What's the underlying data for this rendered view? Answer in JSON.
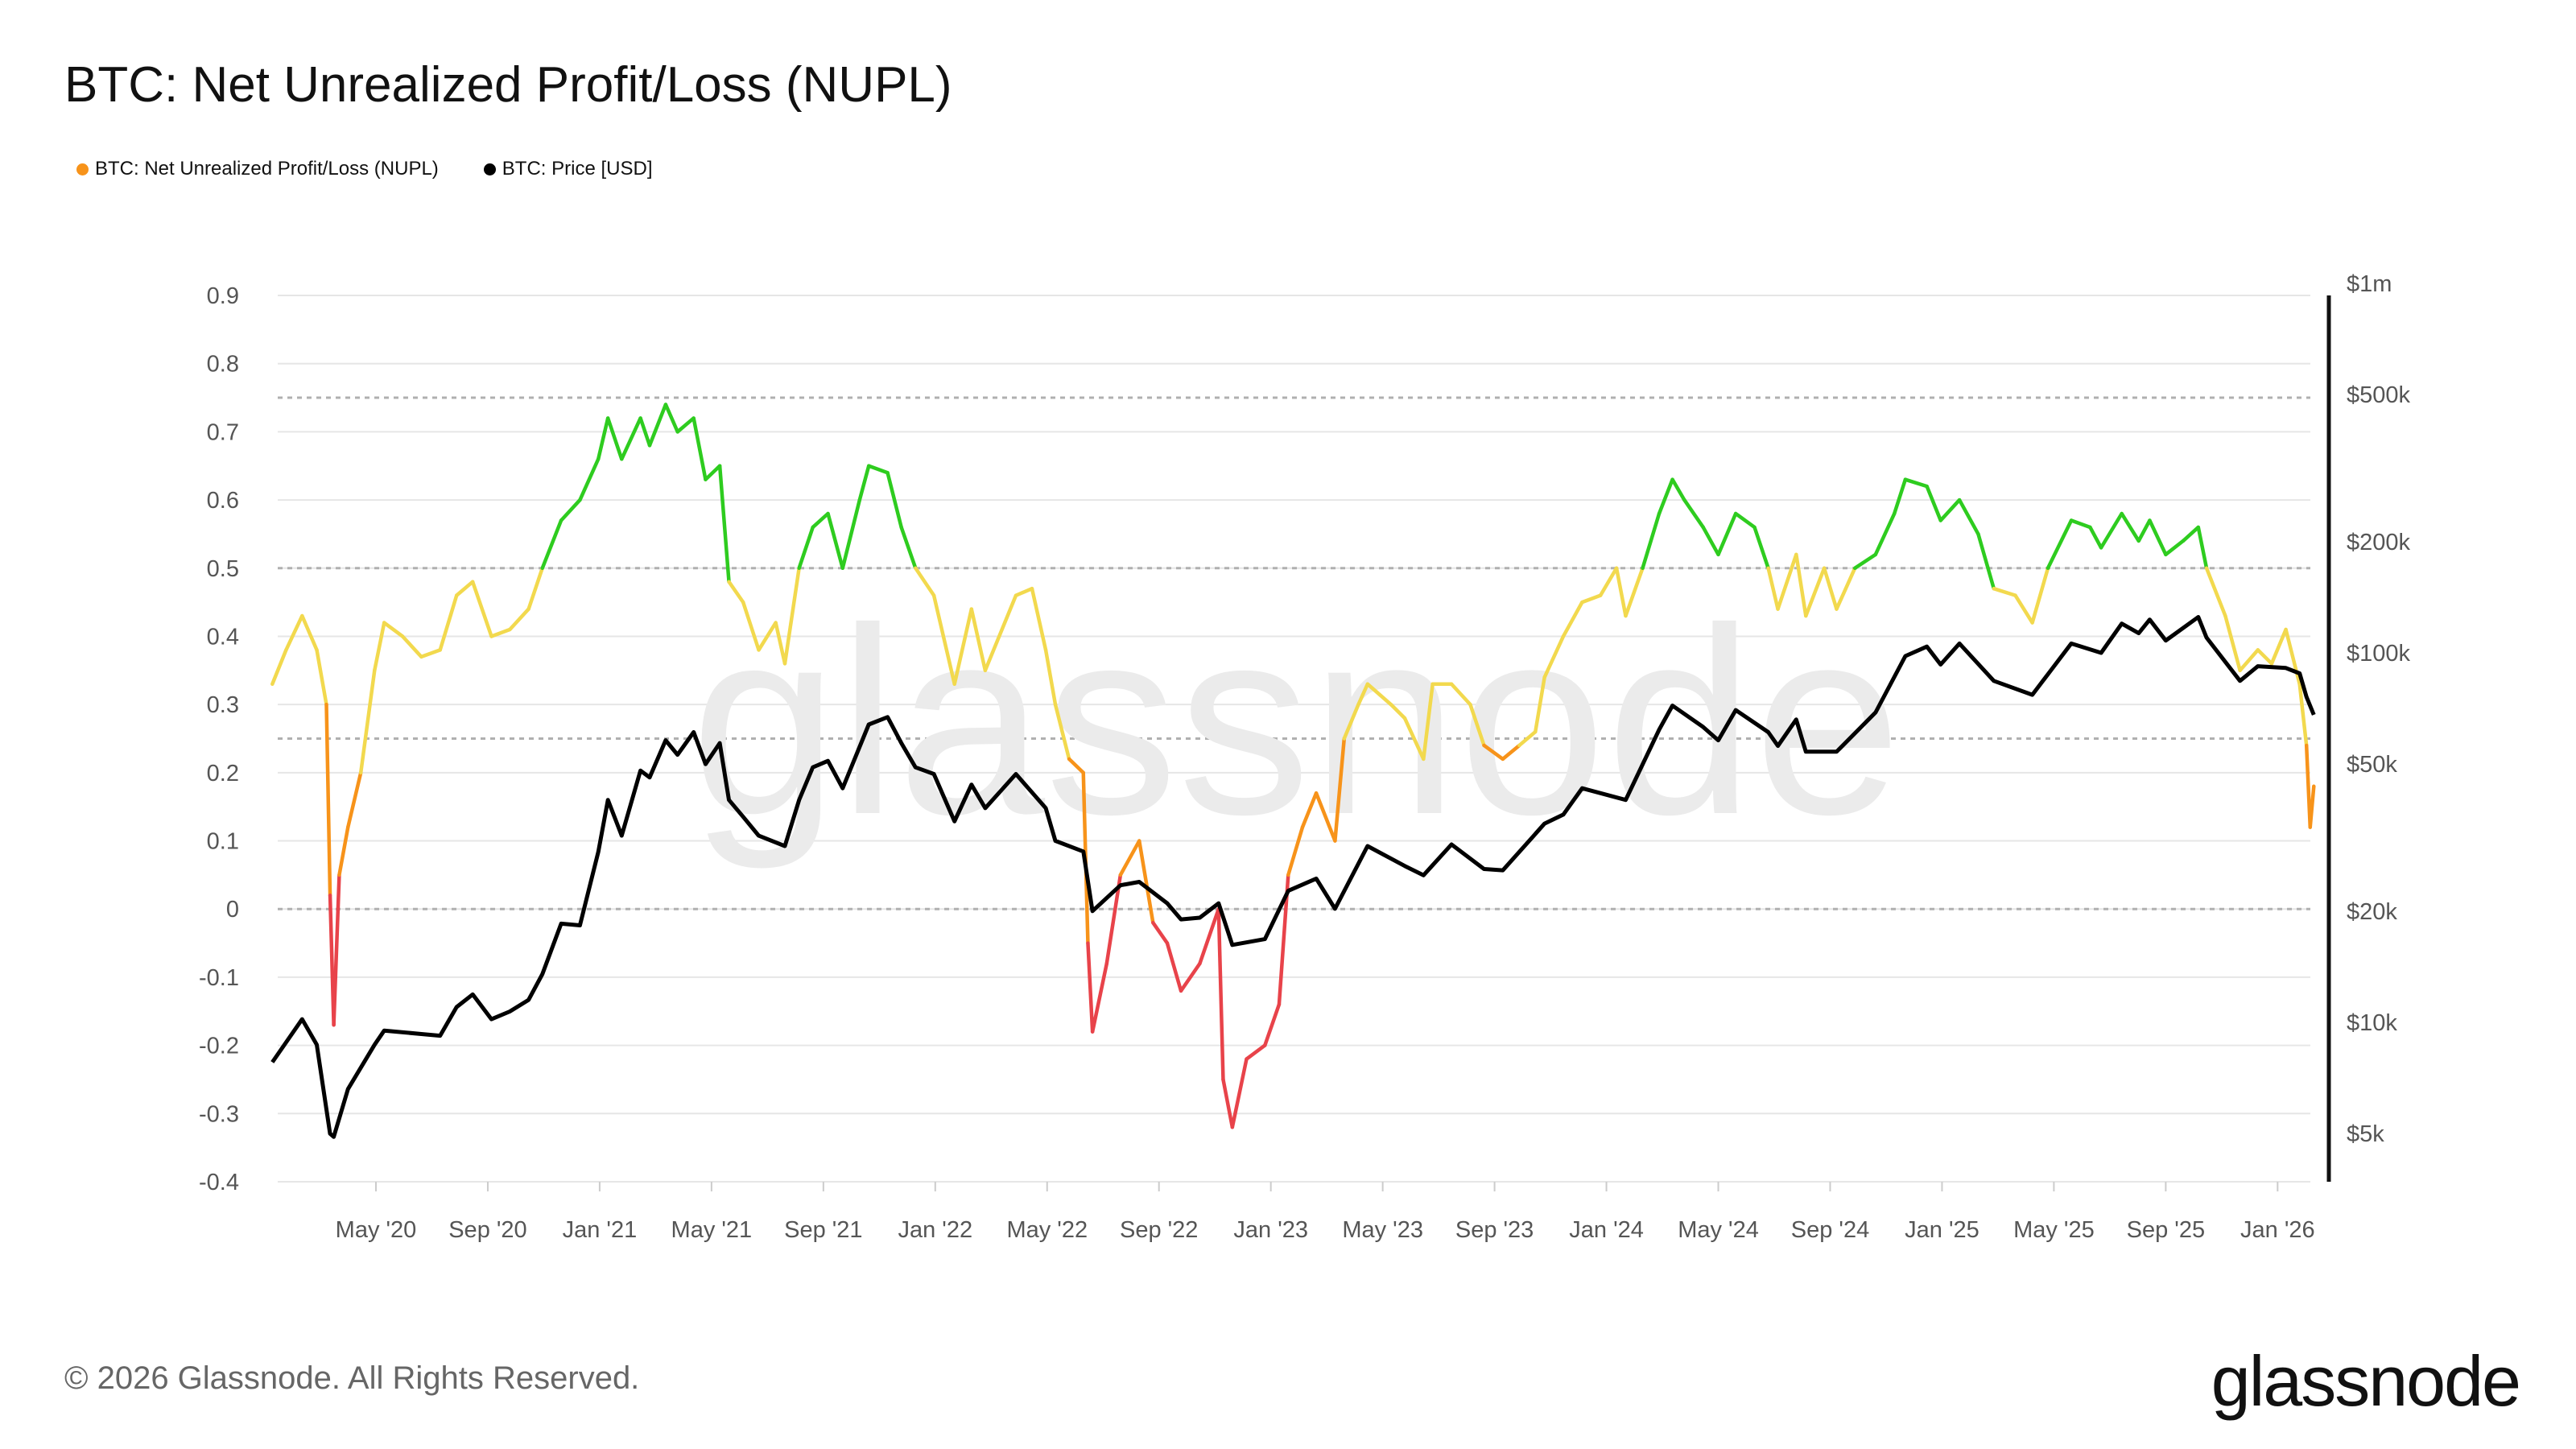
{
  "title": "BTC: Net Unrealized Profit/Loss (NUPL)",
  "footer": "© 2026 Glassnode. All Rights Reserved.",
  "logo": "glassnode",
  "watermark": "glassnode",
  "colors": {
    "red": "#e8434a",
    "orange": "#f7931a",
    "yellow": "#f2d94e",
    "green": "#2ecc1f",
    "price": "#000000",
    "grid": "#e6e6e6",
    "dashed": "#b0b0b0"
  },
  "chart_data": {
    "type": "line",
    "title": "BTC: Net Unrealized Profit/Loss (NUPL)",
    "legend": {
      "placement": "top-left",
      "items": [
        {
          "name": "BTC: Net Unrealized Profit/Loss (NUPL)",
          "color": "#f7931a"
        },
        {
          "name": "BTC: Price [USD]",
          "color": "#000000"
        }
      ]
    },
    "x_ticks": [
      "May '20",
      "Sep '20",
      "Jan '21",
      "May '21",
      "Sep '21",
      "Jan '22",
      "May '22",
      "Sep '22",
      "Jan '23",
      "May '23",
      "Sep '23",
      "Jan '24",
      "May '24",
      "Sep '24",
      "Jan '25",
      "May '25",
      "Sep '25",
      "Jan '26"
    ],
    "y_left": {
      "range": [
        -0.4,
        0.9
      ],
      "ticks": [
        "0.9",
        "0.8",
        "0.7",
        "0.6",
        "0.5",
        "0.4",
        "0.3",
        "0.2",
        "0.1",
        "0",
        "-0.1",
        "-0.2",
        "-0.3",
        "-0.4"
      ],
      "dashed_levels": [
        0.75,
        0.5,
        0.25,
        0
      ]
    },
    "y_right": {
      "scale": "log",
      "range": [
        4500,
        1000000
      ],
      "ticks": [
        {
          "label": "$1m",
          "value": 1000000
        },
        {
          "label": "$500k",
          "value": 500000
        },
        {
          "label": "$200k",
          "value": 200000
        },
        {
          "label": "$100k",
          "value": 100000
        },
        {
          "label": "$50k",
          "value": 50000
        },
        {
          "label": "$20k",
          "value": 20000
        },
        {
          "label": "$10k",
          "value": 10000
        },
        {
          "label": "$5k",
          "value": 5000
        }
      ]
    },
    "grid": true,
    "nupl_color_bands": [
      {
        "below": 0,
        "color": "red"
      },
      {
        "below": 0.25,
        "color": "orange"
      },
      {
        "below": 0.5,
        "color": "yellow"
      },
      {
        "below": 1,
        "color": "green"
      }
    ],
    "series": [
      {
        "name": "BTC: Net Unrealized Profit/Loss (NUPL)",
        "axis": "left",
        "points": [
          [
            "2020-01-10",
            0.33
          ],
          [
            "2020-01-25",
            0.38
          ],
          [
            "2020-02-12",
            0.43
          ],
          [
            "2020-02-28",
            0.38
          ],
          [
            "2020-03-08",
            0.3
          ],
          [
            "2020-03-12",
            0.02
          ],
          [
            "2020-03-16",
            -0.17
          ],
          [
            "2020-03-22",
            0.05
          ],
          [
            "2020-04-01",
            0.12
          ],
          [
            "2020-04-15",
            0.2
          ],
          [
            "2020-04-30",
            0.35
          ],
          [
            "2020-05-10",
            0.42
          ],
          [
            "2020-05-30",
            0.4
          ],
          [
            "2020-06-20",
            0.37
          ],
          [
            "2020-07-10",
            0.38
          ],
          [
            "2020-07-28",
            0.46
          ],
          [
            "2020-08-15",
            0.48
          ],
          [
            "2020-09-05",
            0.4
          ],
          [
            "2020-09-25",
            0.41
          ],
          [
            "2020-10-15",
            0.44
          ],
          [
            "2020-10-30",
            0.5
          ],
          [
            "2020-11-20",
            0.57
          ],
          [
            "2020-12-10",
            0.6
          ],
          [
            "2020-12-30",
            0.66
          ],
          [
            "2021-01-10",
            0.72
          ],
          [
            "2021-01-25",
            0.66
          ],
          [
            "2021-02-15",
            0.72
          ],
          [
            "2021-02-25",
            0.68
          ],
          [
            "2021-03-12",
            0.74
          ],
          [
            "2021-03-25",
            0.7
          ],
          [
            "2021-04-12",
            0.72
          ],
          [
            "2021-04-25",
            0.63
          ],
          [
            "2021-05-10",
            0.65
          ],
          [
            "2021-05-20",
            0.48
          ],
          [
            "2021-06-05",
            0.45
          ],
          [
            "2021-06-22",
            0.38
          ],
          [
            "2021-07-10",
            0.42
          ],
          [
            "2021-07-20",
            0.36
          ],
          [
            "2021-08-05",
            0.5
          ],
          [
            "2021-08-20",
            0.56
          ],
          [
            "2021-09-06",
            0.58
          ],
          [
            "2021-09-22",
            0.5
          ],
          [
            "2021-10-10",
            0.6
          ],
          [
            "2021-10-20",
            0.65
          ],
          [
            "2021-11-10",
            0.64
          ],
          [
            "2021-11-25",
            0.56
          ],
          [
            "2021-12-10",
            0.5
          ],
          [
            "2021-12-30",
            0.46
          ],
          [
            "2022-01-22",
            0.33
          ],
          [
            "2022-02-10",
            0.44
          ],
          [
            "2022-02-25",
            0.35
          ],
          [
            "2022-03-28",
            0.46
          ],
          [
            "2022-04-15",
            0.47
          ],
          [
            "2022-04-30",
            0.38
          ],
          [
            "2022-05-10",
            0.3
          ],
          [
            "2022-05-25",
            0.22
          ],
          [
            "2022-06-10",
            0.2
          ],
          [
            "2022-06-15",
            -0.05
          ],
          [
            "2022-06-20",
            -0.18
          ],
          [
            "2022-07-05",
            -0.08
          ],
          [
            "2022-07-20",
            0.05
          ],
          [
            "2022-08-10",
            0.1
          ],
          [
            "2022-08-25",
            -0.02
          ],
          [
            "2022-09-10",
            -0.05
          ],
          [
            "2022-09-25",
            -0.12
          ],
          [
            "2022-10-15",
            -0.08
          ],
          [
            "2022-11-05",
            0.0
          ],
          [
            "2022-11-10",
            -0.25
          ],
          [
            "2022-11-20",
            -0.32
          ],
          [
            "2022-12-05",
            -0.22
          ],
          [
            "2022-12-25",
            -0.2
          ],
          [
            "2023-01-10",
            -0.14
          ],
          [
            "2023-01-20",
            0.05
          ],
          [
            "2023-02-05",
            0.12
          ],
          [
            "2023-02-20",
            0.17
          ],
          [
            "2023-03-10",
            0.1
          ],
          [
            "2023-03-20",
            0.25
          ],
          [
            "2023-04-05",
            0.3
          ],
          [
            "2023-04-15",
            0.33
          ],
          [
            "2023-05-10",
            0.3
          ],
          [
            "2023-05-25",
            0.28
          ],
          [
            "2023-06-15",
            0.22
          ],
          [
            "2023-06-25",
            0.33
          ],
          [
            "2023-07-15",
            0.33
          ],
          [
            "2023-08-05",
            0.3
          ],
          [
            "2023-08-20",
            0.24
          ],
          [
            "2023-09-10",
            0.22
          ],
          [
            "2023-09-28",
            0.24
          ],
          [
            "2023-10-15",
            0.26
          ],
          [
            "2023-10-25",
            0.34
          ],
          [
            "2023-11-15",
            0.4
          ],
          [
            "2023-12-05",
            0.45
          ],
          [
            "2023-12-25",
            0.46
          ],
          [
            "2024-01-12",
            0.5
          ],
          [
            "2024-01-22",
            0.43
          ],
          [
            "2024-02-10",
            0.5
          ],
          [
            "2024-02-28",
            0.58
          ],
          [
            "2024-03-12",
            0.63
          ],
          [
            "2024-03-25",
            0.6
          ],
          [
            "2024-04-15",
            0.56
          ],
          [
            "2024-05-01",
            0.52
          ],
          [
            "2024-05-20",
            0.58
          ],
          [
            "2024-06-10",
            0.56
          ],
          [
            "2024-06-25",
            0.5
          ],
          [
            "2024-07-05",
            0.44
          ],
          [
            "2024-07-25",
            0.52
          ],
          [
            "2024-08-05",
            0.43
          ],
          [
            "2024-08-25",
            0.5
          ],
          [
            "2024-09-08",
            0.44
          ],
          [
            "2024-09-28",
            0.5
          ],
          [
            "2024-10-20",
            0.52
          ],
          [
            "2024-11-10",
            0.58
          ],
          [
            "2024-11-22",
            0.63
          ],
          [
            "2024-12-15",
            0.62
          ],
          [
            "2024-12-30",
            0.57
          ],
          [
            "2025-01-20",
            0.6
          ],
          [
            "2025-02-10",
            0.55
          ],
          [
            "2025-02-27",
            0.47
          ],
          [
            "2025-03-20",
            0.46
          ],
          [
            "2025-04-08",
            0.42
          ],
          [
            "2025-04-25",
            0.5
          ],
          [
            "2025-05-20",
            0.57
          ],
          [
            "2025-06-10",
            0.56
          ],
          [
            "2025-06-22",
            0.53
          ],
          [
            "2025-07-14",
            0.58
          ],
          [
            "2025-08-02",
            0.54
          ],
          [
            "2025-08-14",
            0.57
          ],
          [
            "2025-09-01",
            0.52
          ],
          [
            "2025-09-20",
            0.54
          ],
          [
            "2025-10-06",
            0.56
          ],
          [
            "2025-10-15",
            0.5
          ],
          [
            "2025-11-05",
            0.43
          ],
          [
            "2025-11-21",
            0.35
          ],
          [
            "2025-12-10",
            0.38
          ],
          [
            "2025-12-25",
            0.36
          ],
          [
            "2026-01-10",
            0.41
          ],
          [
            "2026-01-25",
            0.33
          ],
          [
            "2026-02-02",
            0.24
          ],
          [
            "2026-02-06",
            0.12
          ],
          [
            "2026-02-10",
            0.18
          ]
        ]
      },
      {
        "name": "BTC: Price [USD]",
        "axis": "right",
        "points": [
          [
            "2020-01-10",
            7800
          ],
          [
            "2020-02-12",
            10200
          ],
          [
            "2020-02-28",
            8700
          ],
          [
            "2020-03-12",
            5000
          ],
          [
            "2020-03-16",
            4900
          ],
          [
            "2020-04-01",
            6600
          ],
          [
            "2020-04-30",
            8700
          ],
          [
            "2020-05-10",
            9500
          ],
          [
            "2020-06-20",
            9300
          ],
          [
            "2020-07-10",
            9200
          ],
          [
            "2020-07-28",
            11000
          ],
          [
            "2020-08-15",
            11900
          ],
          [
            "2020-09-05",
            10200
          ],
          [
            "2020-09-25",
            10700
          ],
          [
            "2020-10-15",
            11500
          ],
          [
            "2020-10-30",
            13500
          ],
          [
            "2020-11-20",
            18500
          ],
          [
            "2020-12-10",
            18300
          ],
          [
            "2020-12-30",
            28900
          ],
          [
            "2021-01-10",
            40000
          ],
          [
            "2021-01-25",
            32000
          ],
          [
            "2021-02-15",
            48000
          ],
          [
            "2021-02-25",
            46000
          ],
          [
            "2021-03-12",
            58000
          ],
          [
            "2021-03-25",
            53000
          ],
          [
            "2021-04-12",
            61000
          ],
          [
            "2021-04-25",
            50000
          ],
          [
            "2021-05-10",
            57000
          ],
          [
            "2021-05-20",
            40000
          ],
          [
            "2021-06-05",
            36000
          ],
          [
            "2021-06-22",
            32000
          ],
          [
            "2021-07-20",
            30000
          ],
          [
            "2021-08-05",
            40000
          ],
          [
            "2021-08-20",
            49000
          ],
          [
            "2021-09-06",
            51000
          ],
          [
            "2021-09-22",
            43000
          ],
          [
            "2021-10-20",
            64000
          ],
          [
            "2021-11-10",
            67000
          ],
          [
            "2021-11-25",
            57000
          ],
          [
            "2021-12-10",
            49000
          ],
          [
            "2021-12-30",
            47000
          ],
          [
            "2022-01-22",
            35000
          ],
          [
            "2022-02-10",
            44000
          ],
          [
            "2022-02-25",
            38000
          ],
          [
            "2022-03-28",
            47000
          ],
          [
            "2022-04-30",
            38000
          ],
          [
            "2022-05-10",
            31000
          ],
          [
            "2022-06-10",
            29000
          ],
          [
            "2022-06-20",
            20000
          ],
          [
            "2022-07-20",
            23500
          ],
          [
            "2022-08-10",
            24000
          ],
          [
            "2022-09-10",
            21000
          ],
          [
            "2022-09-25",
            19000
          ],
          [
            "2022-10-15",
            19200
          ],
          [
            "2022-11-05",
            21000
          ],
          [
            "2022-11-20",
            16200
          ],
          [
            "2022-12-25",
            16800
          ],
          [
            "2023-01-20",
            22700
          ],
          [
            "2023-02-20",
            24500
          ],
          [
            "2023-03-10",
            20300
          ],
          [
            "2023-04-15",
            30000
          ],
          [
            "2023-05-25",
            26500
          ],
          [
            "2023-06-15",
            25000
          ],
          [
            "2023-07-15",
            30300
          ],
          [
            "2023-08-20",
            26000
          ],
          [
            "2023-09-10",
            25800
          ],
          [
            "2023-10-25",
            34500
          ],
          [
            "2023-11-15",
            36500
          ],
          [
            "2023-12-05",
            43000
          ],
          [
            "2024-01-22",
            40000
          ],
          [
            "2024-02-28",
            62000
          ],
          [
            "2024-03-12",
            72000
          ],
          [
            "2024-04-15",
            63000
          ],
          [
            "2024-05-01",
            58000
          ],
          [
            "2024-05-20",
            70000
          ],
          [
            "2024-06-25",
            61000
          ],
          [
            "2024-07-05",
            56000
          ],
          [
            "2024-07-25",
            66000
          ],
          [
            "2024-08-05",
            54000
          ],
          [
            "2024-09-08",
            54000
          ],
          [
            "2024-10-20",
            69000
          ],
          [
            "2024-11-22",
            98000
          ],
          [
            "2024-12-15",
            104000
          ],
          [
            "2024-12-30",
            93000
          ],
          [
            "2025-01-20",
            106000
          ],
          [
            "2025-02-27",
            84000
          ],
          [
            "2025-04-08",
            77000
          ],
          [
            "2025-05-20",
            106000
          ],
          [
            "2025-06-22",
            100000
          ],
          [
            "2025-07-14",
            120000
          ],
          [
            "2025-08-02",
            113000
          ],
          [
            "2025-08-14",
            123000
          ],
          [
            "2025-09-01",
            108000
          ],
          [
            "2025-10-06",
            125000
          ],
          [
            "2025-10-15",
            110000
          ],
          [
            "2025-11-21",
            84000
          ],
          [
            "2025-12-10",
            92000
          ],
          [
            "2026-01-10",
            91000
          ],
          [
            "2026-01-25",
            88000
          ],
          [
            "2026-02-02",
            76000
          ],
          [
            "2026-02-10",
            68000
          ]
        ]
      }
    ]
  }
}
